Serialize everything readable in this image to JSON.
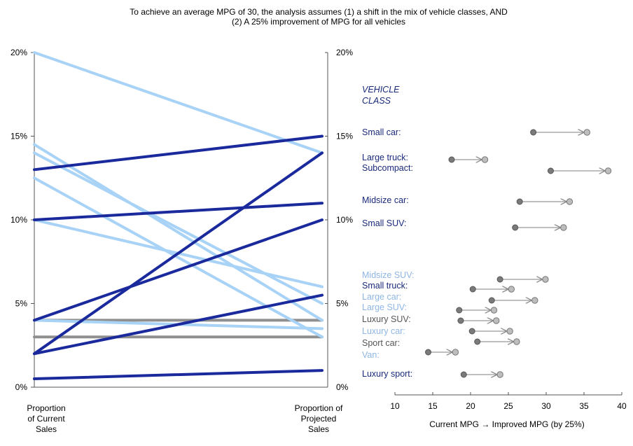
{
  "title": {
    "line1": "To achieve an average MPG of 30, the analysis assumes (1) a shift in the mix of vehicle classes, AND",
    "line2": "(2) A 25% improvement of MPG for all vehicles"
  },
  "chart_data": [
    {
      "type": "slope",
      "title": "Proportion of Current Sales vs Proportion of Projected Sales",
      "left_axis_label": [
        "Proportion",
        "of Current",
        "Sales"
      ],
      "right_axis_label": [
        "Proportion of",
        "Projected",
        "Sales"
      ],
      "ylim": [
        0,
        20
      ],
      "y_ticks": [
        0,
        5,
        10,
        15,
        20
      ],
      "y_tick_labels": [
        "0%",
        "5%",
        "10%",
        "15%",
        "20%"
      ],
      "series": [
        {
          "start": 13,
          "end": 15,
          "color": "#1a2a9c"
        },
        {
          "start": 10,
          "end": 11,
          "color": "#1a2a9c"
        },
        {
          "start": 4,
          "end": 10,
          "color": "#1a2a9c"
        },
        {
          "start": 2,
          "end": 14,
          "color": "#1a2a9c"
        },
        {
          "start": 2,
          "end": 5.5,
          "color": "#1a2a9c"
        },
        {
          "start": 0.5,
          "end": 1,
          "color": "#1a2a9c"
        },
        {
          "start": 20,
          "end": 14,
          "color": "#a8d3f6"
        },
        {
          "start": 14.5,
          "end": 4,
          "color": "#a8d3f6"
        },
        {
          "start": 14,
          "end": 5,
          "color": "#a8d3f6"
        },
        {
          "start": 12.5,
          "end": 3,
          "color": "#a8d3f6"
        },
        {
          "start": 10,
          "end": 6,
          "color": "#a8d3f6"
        },
        {
          "start": 4,
          "end": 3.5,
          "color": "#a8d3f6"
        },
        {
          "start": 4,
          "end": 4,
          "color": "#8f8f8f"
        },
        {
          "start": 3,
          "end": 3,
          "color": "#8f8f8f"
        }
      ]
    },
    {
      "type": "dumbbell",
      "header": [
        "VEHICLE",
        "CLASS"
      ],
      "xlabel": "Current MPG → Improved MPG (by 25%)",
      "xlim": [
        10,
        40
      ],
      "x_ticks": [
        10,
        15,
        20,
        25,
        30,
        35,
        40
      ],
      "x_tick_labels": [
        "10",
        "15",
        "20",
        "25",
        "30",
        "35",
        "40"
      ],
      "rows": [
        {
          "label": "Small car:",
          "current": 28.3,
          "improved": 35.4,
          "color": "#1a2a7a"
        },
        {
          "label": "Large truck:",
          "current": 17.5,
          "improved": 21.9,
          "color": "#1a2a7a"
        },
        {
          "label": "Subcompact:",
          "current": 30.6,
          "improved": 38.2,
          "color": "#1a2a7a"
        },
        {
          "label": "Midsize car:",
          "current": 26.5,
          "improved": 33.1,
          "color": "#1a2a7a"
        },
        {
          "label": "Small SUV:",
          "current": 25.9,
          "improved": 32.3,
          "color": "#1a2a7a"
        },
        {
          "label": "Midsize SUV:",
          "current": 23.9,
          "improved": 29.9,
          "color": "#8fb6e3"
        },
        {
          "label": "Small truck:",
          "current": 20.3,
          "improved": 25.4,
          "color": "#1a2a7a"
        },
        {
          "label": "Large car:",
          "current": 22.8,
          "improved": 28.5,
          "color": "#8fb6e3"
        },
        {
          "label": "Large SUV:",
          "current": 18.5,
          "improved": 23.1,
          "color": "#8fb6e3"
        },
        {
          "label": "Luxury SUV:",
          "current": 18.7,
          "improved": 23.4,
          "color": "#555555"
        },
        {
          "label": "Luxury car:",
          "current": 20.2,
          "improved": 25.2,
          "color": "#8fb6e3"
        },
        {
          "label": "Sport car:",
          "current": 20.9,
          "improved": 26.1,
          "color": "#555555"
        },
        {
          "label": "Van:",
          "current": 14.4,
          "improved": 18.0,
          "color": "#8fb6e3"
        },
        {
          "label": "Luxury sport:",
          "current": 19.1,
          "improved": 23.9,
          "color": "#1a2a7a"
        }
      ]
    }
  ]
}
